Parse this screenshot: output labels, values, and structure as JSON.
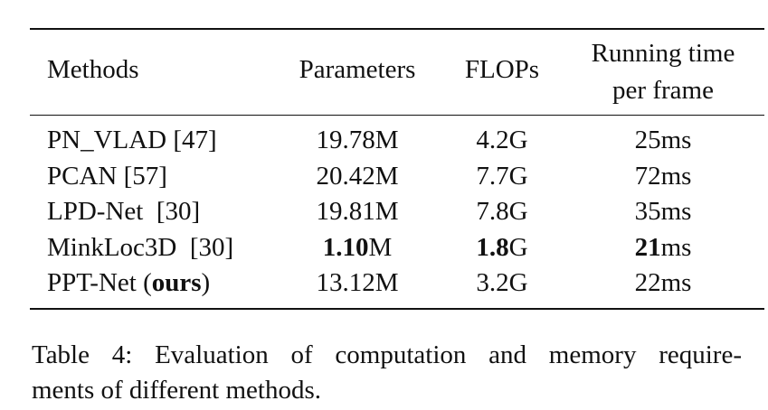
{
  "table": {
    "columns": [
      "Methods",
      "Parameters",
      "FLOPs",
      "Running time per frame"
    ],
    "rows": [
      [
        [
          {
            "text": "PN_VLAD [47]"
          }
        ],
        [
          {
            "text": "19.78M"
          }
        ],
        [
          {
            "text": "4.2G"
          }
        ],
        [
          {
            "text": "25ms"
          }
        ]
      ],
      [
        [
          {
            "text": "PCAN [57]"
          }
        ],
        [
          {
            "text": "20.42M"
          }
        ],
        [
          {
            "text": "7.7G"
          }
        ],
        [
          {
            "text": "72ms"
          }
        ]
      ],
      [
        [
          {
            "text": "LPD-Net  [30]"
          }
        ],
        [
          {
            "text": "19.81M"
          }
        ],
        [
          {
            "text": "7.8G"
          }
        ],
        [
          {
            "text": "35ms"
          }
        ]
      ],
      [
        [
          {
            "text": "MinkLoc3D  [30]"
          }
        ],
        [
          {
            "text": "1.10",
            "bold": true
          },
          {
            "text": "M"
          }
        ],
        [
          {
            "text": "1.8",
            "bold": true
          },
          {
            "text": "G"
          }
        ],
        [
          {
            "text": "21",
            "bold": true
          },
          {
            "text": "ms"
          }
        ]
      ],
      [
        [
          {
            "text": "PPT-Net ("
          },
          {
            "text": "ours",
            "bold": true
          },
          {
            "text": ")"
          }
        ],
        [
          {
            "text": "13.12M"
          }
        ],
        [
          {
            "text": "3.2G"
          }
        ],
        [
          {
            "text": "22ms"
          }
        ]
      ]
    ]
  },
  "caption": {
    "lines": [
      "Table 4:  Evaluation of computation and memory require-",
      "ments of different methods."
    ]
  }
}
